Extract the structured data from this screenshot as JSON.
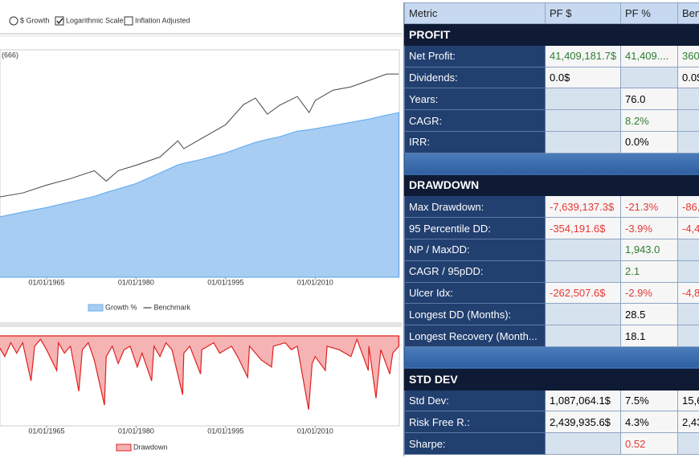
{
  "toolbar": {
    "options": [
      {
        "label": "$ Growth",
        "kind": "radio",
        "checked": false
      },
      {
        "label": "Logarithmic Scale",
        "kind": "checkbox",
        "checked": true
      },
      {
        "label": "Inflation Adjusted",
        "kind": "checkbox",
        "checked": false
      }
    ]
  },
  "chart_data": [
    {
      "type": "area",
      "annotation": "(666)",
      "log_scale": true,
      "x": [
        1957,
        1961,
        1965,
        1969,
        1973,
        1975,
        1977,
        1980,
        1984,
        1987,
        1988,
        1991,
        1995,
        1998,
        2000,
        2002,
        2004,
        2007,
        2009,
        2010,
        2013,
        2016,
        2019,
        2022,
        2024
      ],
      "xlim": [
        1957.2,
        2024.1
      ],
      "xticks": [
        {
          "value": 1965,
          "label": "01/01/1965"
        },
        {
          "value": 1980,
          "label": "01/01/1980"
        },
        {
          "value": 1995,
          "label": "01/01/1995"
        },
        {
          "value": 2010,
          "label": "01/01/2010"
        }
      ],
      "ylim": [
        0.1,
        10000
      ],
      "series": [
        {
          "name": "Growth %",
          "kind": "area",
          "color": "#6aaef0",
          "fill": "#a8cdf2",
          "values": [
            2.1,
            2.7,
            3.4,
            4.5,
            6.0,
            7.3,
            8.7,
            11.5,
            19.6,
            29.5,
            32,
            39,
            54,
            75,
            92,
            107,
            122,
            163,
            175,
            184,
            217,
            255,
            300,
            368,
            415
          ]
        },
        {
          "name": "Benchmark",
          "kind": "line",
          "color": "#444444",
          "values": [
            5.8,
            7.1,
            10.6,
            14.7,
            22,
            13,
            22,
            29,
            44,
            100,
            67,
            113,
            226,
            625,
            867,
            384,
            600,
            940,
            417,
            767,
            1300,
            1530,
            2120,
            2940,
            2940
          ]
        }
      ]
    },
    {
      "type": "area",
      "x": [
        1957,
        1958,
        1959,
        1960,
        1961,
        1962.4,
        1963,
        1964,
        1965,
        1966.7,
        1967,
        1968,
        1969,
        1970.4,
        1971,
        1972,
        1973,
        1974.7,
        1975,
        1976,
        1977,
        1978,
        1979,
        1980.2,
        1981,
        1982.6,
        1983,
        1984,
        1985,
        1986,
        1987.8,
        1988,
        1989,
        1990.8,
        1991,
        1993,
        1994,
        1996,
        1997,
        1998.7,
        1999,
        2000,
        2001,
        2002.7,
        2003,
        2005,
        2006,
        2007,
        2008.9,
        2009.5,
        2010,
        2011.7,
        2012,
        2014,
        2015,
        2016,
        2017,
        2018.9,
        2019,
        2020.2,
        2021,
        2022.5,
        2023,
        2024
      ],
      "xlim": [
        1957.2,
        2024.1
      ],
      "xticks": [
        {
          "value": 1965,
          "label": "01/01/1965"
        },
        {
          "value": 1980,
          "label": "01/01/1980"
        },
        {
          "value": 1995,
          "label": "01/01/1995"
        },
        {
          "value": 2010,
          "label": "01/01/2010"
        }
      ],
      "ylim": [
        -26,
        0
      ],
      "series": [
        {
          "name": "Drawdown",
          "kind": "area",
          "color": "#e02020",
          "fill": "#f6b3b3",
          "values": [
            -3,
            -6,
            -2,
            -5,
            -2,
            -13,
            -3,
            -1,
            -4,
            -10,
            -2,
            -5,
            -3,
            -16,
            -4,
            -2,
            -7,
            -20,
            -6,
            -3,
            -8,
            -4,
            -3,
            -9,
            -5,
            -13,
            -3,
            -6,
            -2,
            -4,
            -17,
            -5,
            -3,
            -11,
            -4,
            -2,
            -5,
            -3,
            -6,
            -12,
            -3,
            -5,
            -7,
            -9,
            -3,
            -2,
            -4,
            -3,
            -21.3,
            -8,
            -6,
            -10,
            -3,
            -4,
            -5,
            -6,
            -1,
            -10,
            -3,
            -18,
            -4,
            -11,
            -5,
            -3
          ]
        }
      ]
    }
  ],
  "table": {
    "columns": [
      "Metric",
      "PF $",
      "PF %",
      "Ben"
    ],
    "sections": [
      {
        "title": "PROFIT",
        "rows": [
          {
            "cells": [
              "Net Profit:",
              "41,409,181.7$",
              "41,409....",
              "360"
            ],
            "colors": [
              "#2e7d32",
              "#2e7d32",
              "#2e7d32"
            ]
          },
          {
            "cells": [
              "Dividends:",
              "0.0$",
              null,
              "0.0$"
            ],
            "colors": [
              "#000000",
              "#000000",
              "#000000"
            ]
          },
          {
            "cells": [
              "Years:",
              null,
              "76.0",
              null
            ],
            "colors": [
              "#000000",
              "#000000",
              "#000000"
            ]
          },
          {
            "cells": [
              "CAGR:",
              null,
              "8.2%",
              null
            ],
            "colors": [
              "#000000",
              "#2e7d32",
              "#000000"
            ]
          },
          {
            "cells": [
              "IRR:",
              null,
              "0.0%",
              null
            ],
            "colors": [
              "#000000",
              "#000000",
              "#000000"
            ]
          }
        ]
      },
      {
        "title": "DRAWDOWN",
        "rows": [
          {
            "cells": [
              "Max Drawdown:",
              "-7,639,137.3$",
              "-21.3%",
              "-86,("
            ],
            "colors": [
              "#e53935",
              "#e53935",
              "#e53935"
            ]
          },
          {
            "cells": [
              "95 Percentile DD:",
              "-354,191.6$",
              "-3.9%",
              "-4,4("
            ],
            "colors": [
              "#e53935",
              "#e53935",
              "#e53935"
            ]
          },
          {
            "cells": [
              "NP / MaxDD:",
              null,
              "1,943.0",
              null
            ],
            "colors": [
              "#000000",
              "#2e7d32",
              "#000000"
            ]
          },
          {
            "cells": [
              "CAGR / 95pDD:",
              null,
              "2.1",
              null
            ],
            "colors": [
              "#000000",
              "#2e7d32",
              "#000000"
            ]
          },
          {
            "cells": [
              "Ulcer Idx:",
              "-262,507.6$",
              "-2.9%",
              "-4,8"
            ],
            "colors": [
              "#e53935",
              "#e53935",
              "#e53935"
            ]
          },
          {
            "cells": [
              "Longest DD (Months):",
              null,
              "28.5",
              null
            ],
            "colors": [
              "#000000",
              "#000000",
              "#000000"
            ]
          },
          {
            "cells": [
              "Longest Recovery (Month...",
              null,
              "18.1",
              null
            ],
            "colors": [
              "#000000",
              "#000000",
              "#000000"
            ]
          }
        ]
      },
      {
        "title": "STD DEV",
        "rows": [
          {
            "cells": [
              "Std Dev:",
              "1,087,064.1$",
              "7.5%",
              "15,6"
            ],
            "colors": [
              "#000000",
              "#000000",
              "#000000"
            ]
          },
          {
            "cells": [
              "Risk Free R.:",
              "2,439,935.6$",
              "4.3%",
              "2,43"
            ],
            "colors": [
              "#000000",
              "#000000",
              "#000000"
            ]
          },
          {
            "cells": [
              "Sharpe:",
              null,
              "0.52",
              null
            ],
            "colors": [
              "#000000",
              "#e53935",
              "#000000"
            ]
          }
        ]
      }
    ]
  }
}
